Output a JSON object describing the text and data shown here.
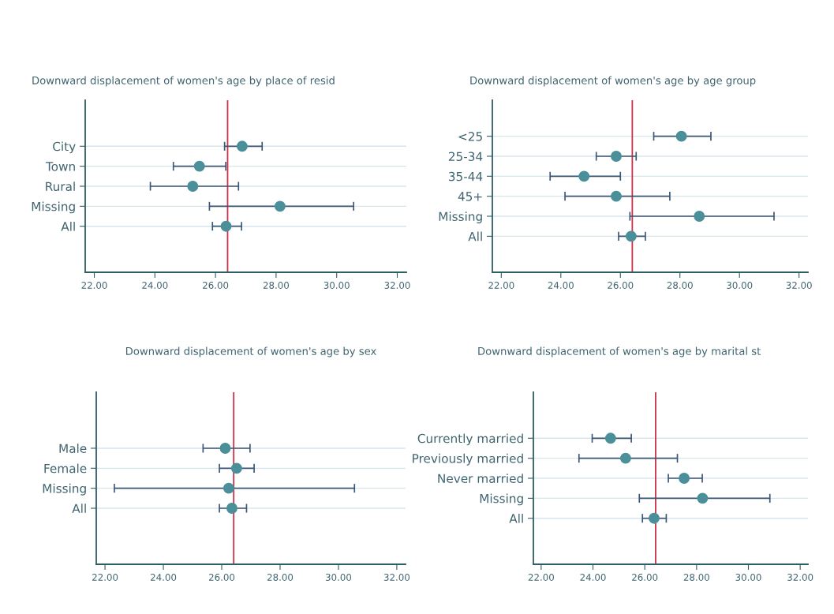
{
  "chart_data": [
    {
      "type": "scatter",
      "orientation": "horizontal",
      "title": "Downward displacement of women's age by place of resid",
      "categories": [
        "City",
        "Town",
        "Rural",
        "Missing",
        "All"
      ],
      "series": [
        {
          "color": "#4a8f99",
          "values": [
            26.88,
            25.47,
            25.25,
            28.13,
            26.35
          ],
          "errors": [
            [
              26.3,
              27.54
            ],
            [
              24.61,
              26.34
            ],
            [
              23.85,
              26.76
            ],
            [
              25.8,
              30.56
            ],
            [
              25.9,
              26.86
            ]
          ]
        }
      ],
      "xlim": [
        21.7,
        32.3
      ],
      "xticks": [
        {
          "value": 22,
          "label": "22.00"
        },
        {
          "value": 24,
          "label": "24.00"
        },
        {
          "value": 26,
          "label": "26.00"
        },
        {
          "value": 28,
          "label": "28.00"
        },
        {
          "value": 30,
          "label": "30.00"
        },
        {
          "value": 32,
          "label": "32.00"
        }
      ],
      "ref_lines": [
        {
          "axis": "x",
          "value": 26.4,
          "color": "#c8324a"
        }
      ],
      "grid": "y",
      "marker": "circle"
    },
    {
      "type": "scatter",
      "orientation": "horizontal",
      "title": "Downward displacement of women's age by age group",
      "categories": [
        "<25",
        "25-34",
        "35-44",
        "45+",
        "Missing",
        "All"
      ],
      "series": [
        {
          "color": "#4a8f99",
          "values": [
            28.05,
            25.86,
            24.78,
            25.86,
            28.65,
            26.36
          ],
          "errors": [
            [
              27.12,
              29.04
            ],
            [
              25.19,
              26.53
            ],
            [
              23.64,
              26.0
            ],
            [
              24.14,
              27.66
            ],
            [
              26.32,
              31.16
            ],
            [
              25.94,
              26.84
            ]
          ]
        }
      ],
      "xlim": [
        21.7,
        32.3
      ],
      "xticks": [
        {
          "value": 22,
          "label": "22.00"
        },
        {
          "value": 24,
          "label": "24.00"
        },
        {
          "value": 26,
          "label": "26.00"
        },
        {
          "value": 28,
          "label": "28.00"
        },
        {
          "value": 30,
          "label": "30.00"
        },
        {
          "value": 32,
          "label": "32.00"
        }
      ],
      "ref_lines": [
        {
          "axis": "x",
          "value": 26.4,
          "color": "#c8324a"
        }
      ],
      "grid": "y",
      "marker": "circle"
    },
    {
      "type": "scatter",
      "orientation": "horizontal",
      "title": "Downward displacement of women's age by sex",
      "categories": [
        "Male",
        "Female",
        "Missing",
        "All"
      ],
      "series": [
        {
          "color": "#4a8f99",
          "values": [
            26.12,
            26.51,
            26.24,
            26.35
          ],
          "errors": [
            [
              25.36,
              26.97
            ],
            [
              25.92,
              27.11
            ],
            [
              22.32,
              30.55
            ],
            [
              25.92,
              26.85
            ]
          ]
        }
      ],
      "xlim": [
        21.7,
        32.3
      ],
      "xticks": [
        {
          "value": 22,
          "label": "22.00"
        },
        {
          "value": 24,
          "label": "24.00"
        },
        {
          "value": 26,
          "label": "26.00"
        },
        {
          "value": 28,
          "label": "28.00"
        },
        {
          "value": 30,
          "label": "30.00"
        },
        {
          "value": 32,
          "label": "32.00"
        }
      ],
      "ref_lines": [
        {
          "axis": "x",
          "value": 26.41,
          "color": "#c8324a"
        }
      ],
      "grid": "y",
      "marker": "circle"
    },
    {
      "type": "scatter",
      "orientation": "horizontal",
      "title": "Downward displacement of women's age by marital st",
      "categories": [
        "Currently married",
        "Previously married",
        "Never married",
        "Missing",
        "All"
      ],
      "series": [
        {
          "color": "#4a8f99",
          "values": [
            24.68,
            25.26,
            27.52,
            28.23,
            26.36
          ],
          "errors": [
            [
              23.97,
              25.48
            ],
            [
              23.46,
              27.26
            ],
            [
              26.91,
              28.22
            ],
            [
              25.79,
              30.83
            ],
            [
              25.91,
              26.83
            ]
          ]
        }
      ],
      "xlim": [
        21.7,
        32.3
      ],
      "xticks": [
        {
          "value": 22,
          "label": "22.00"
        },
        {
          "value": 24,
          "label": "24.00"
        },
        {
          "value": 26,
          "label": "26.00"
        },
        {
          "value": 28,
          "label": "28.00"
        },
        {
          "value": 30,
          "label": "30.00"
        },
        {
          "value": 32,
          "label": "32.00"
        }
      ],
      "ref_lines": [
        {
          "axis": "x",
          "value": 26.42,
          "color": "#c8324a"
        }
      ],
      "grid": "y",
      "marker": "circle"
    }
  ]
}
